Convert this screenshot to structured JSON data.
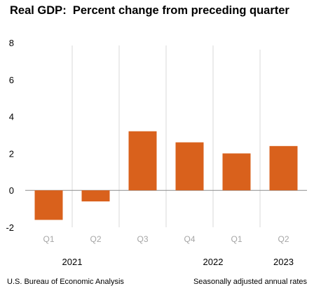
{
  "chart_data": {
    "type": "bar",
    "title": "Real GDP:  Percent change from preceding quarter",
    "categories": [
      "Q1",
      "Q2",
      "Q3",
      "Q4",
      "Q1",
      "Q2"
    ],
    "years": [
      {
        "label": "2021",
        "start": 0,
        "end": 1
      },
      {
        "label": "2022",
        "start": 2,
        "end": 5
      },
      {
        "label": "2023",
        "start": 5,
        "end": 5
      }
    ],
    "values": [
      -1.6,
      -0.6,
      3.2,
      2.6,
      2.0,
      2.4
    ],
    "ylim": [
      -2,
      8
    ],
    "yticks": [
      "8",
      "6",
      "4",
      "2",
      "0",
      "-2"
    ],
    "xlabel": "",
    "ylabel": "",
    "grid": false,
    "colors": {
      "bar": "#d9611c",
      "zero_line": "#8c8c8c",
      "separator": "#d9d9d9",
      "quarter_label": "#a6a6a6",
      "axis_text": "#000000"
    }
  },
  "footer": {
    "source": "U.S. Bureau of Economic Analysis",
    "note": "Seasonally adjusted annual rates"
  }
}
